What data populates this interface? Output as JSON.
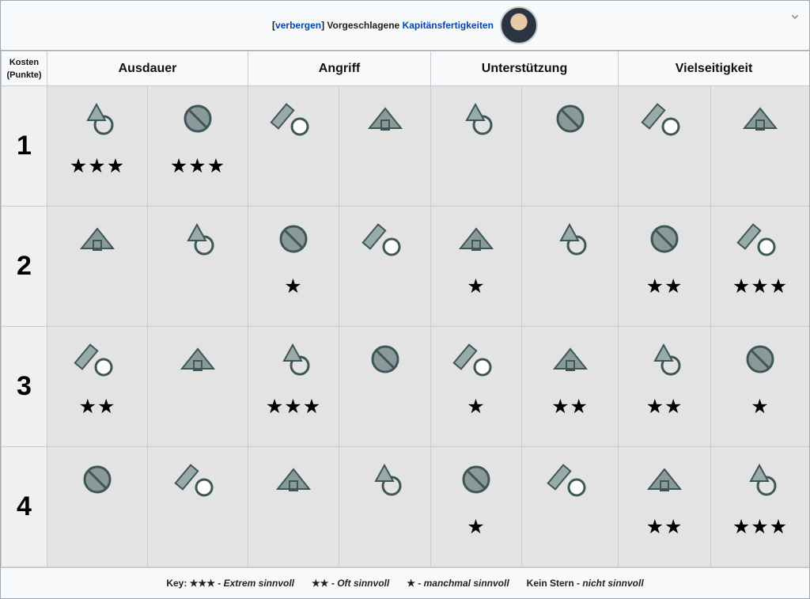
{
  "header": {
    "open_bracket": "[",
    "toggle": "verbergen",
    "close_bracket": "]",
    "title": "Vorgeschlagene",
    "link": "Kapitänsfertigkeiten"
  },
  "table": {
    "cost_header": "Kosten (Punkte)",
    "groups": [
      "Ausdauer",
      "Angriff",
      "Unterstützung",
      "Vielseitigkeit"
    ],
    "rows": [
      {
        "cost": "1",
        "stars": [
          "★★★",
          "★★★",
          null,
          null,
          null,
          null,
          null,
          null
        ]
      },
      {
        "cost": "2",
        "stars": [
          null,
          null,
          "★",
          null,
          "★",
          null,
          "★★",
          "★★★"
        ]
      },
      {
        "cost": "3",
        "stars": [
          "★★",
          null,
          "★★★",
          null,
          "★",
          "★★",
          "★★",
          "★"
        ]
      },
      {
        "cost": "4",
        "stars": [
          null,
          null,
          null,
          null,
          "★",
          null,
          "★★",
          "★★★"
        ]
      }
    ]
  },
  "key": {
    "label": "Key:",
    "separator": " - ",
    "items": [
      {
        "symbol": "★★★",
        "text": "Extrem sinnvoll"
      },
      {
        "symbol": "★★",
        "text": "Oft sinnvoll"
      },
      {
        "symbol": "★",
        "text": "manchmal sinnvoll"
      },
      {
        "symbol": "Kein Stern",
        "text": "nicht sinnvoll"
      }
    ]
  }
}
